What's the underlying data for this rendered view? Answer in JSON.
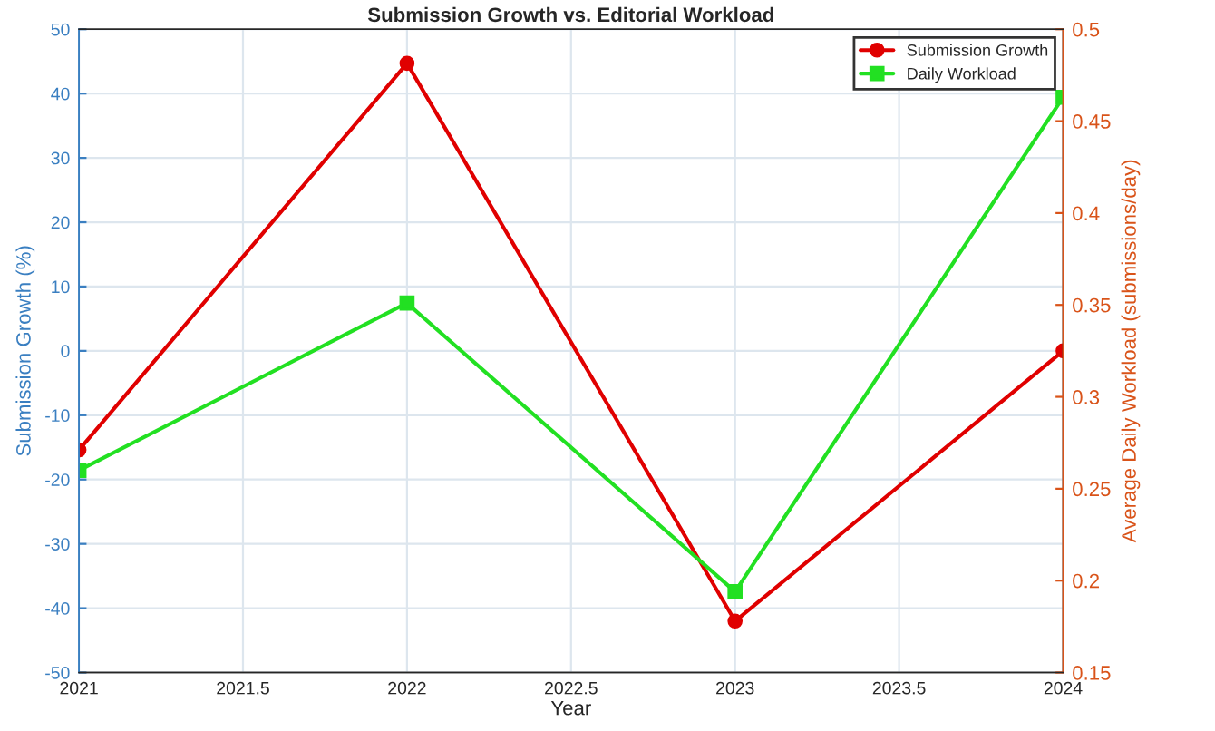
{
  "chart_data": {
    "type": "line",
    "title": "Submission Growth vs. Editorial Workload",
    "xlabel": "Year",
    "ylabel": "Submission Growth (%)",
    "y2label": "Average Daily Workload (submissions/day)",
    "x": [
      2021,
      2022,
      2023,
      2024
    ],
    "series": [
      {
        "name": "Submission Growth",
        "color": "#e00000",
        "marker": "circle",
        "values": [
          -15.4,
          44.7,
          -42.0,
          0
        ]
      },
      {
        "name": "Daily Workload",
        "color": "#22e022",
        "marker": "square",
        "axis": "y2",
        "values": [
          0.26,
          0.351,
          0.194,
          0.463
        ]
      }
    ],
    "xlim": [
      2021,
      2024
    ],
    "xticks": [
      2021,
      2021.5,
      2022,
      2022.5,
      2023,
      2023.5,
      2024
    ],
    "ylim": [
      -50,
      50
    ],
    "yticks": [
      -50,
      -40,
      -30,
      -20,
      -10,
      0,
      10,
      20,
      30,
      40,
      50
    ],
    "y2lim": [
      0.15,
      0.5
    ],
    "y2ticks": [
      0.15,
      0.2,
      0.25,
      0.3,
      0.35,
      0.4,
      0.45,
      0.5
    ],
    "grid": true,
    "legend": "top right",
    "line_style": "solid"
  }
}
